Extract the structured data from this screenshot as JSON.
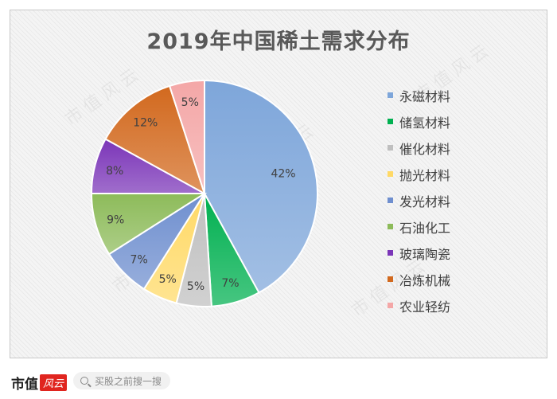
{
  "chart_data": {
    "type": "pie",
    "title": "2019年中国稀土需求分布",
    "categories": [
      "永磁材料",
      "储氢材料",
      "催化材料",
      "抛光材料",
      "发光材料",
      "石油化工",
      "玻璃陶瓷",
      "冶炼机械",
      "农业轻纺"
    ],
    "values": [
      42,
      7,
      5,
      5,
      7,
      9,
      8,
      12,
      5
    ],
    "labels": [
      "42%",
      "7%",
      "5%",
      "5%",
      "7%",
      "9%",
      "8%",
      "12%",
      "5%"
    ],
    "colors": [
      "#7ea6da",
      "#00b050",
      "#bfbfbf",
      "#ffd966",
      "#6f8fcf",
      "#8dbb5a",
      "#7b35b8",
      "#d2691e",
      "#f4a7a7"
    ],
    "legend_position": "right"
  },
  "watermark": "市值风云",
  "footer": {
    "brand": "市值",
    "badge": "风云",
    "search_placeholder": "买股之前搜一搜",
    "search_icon": "search-icon"
  }
}
